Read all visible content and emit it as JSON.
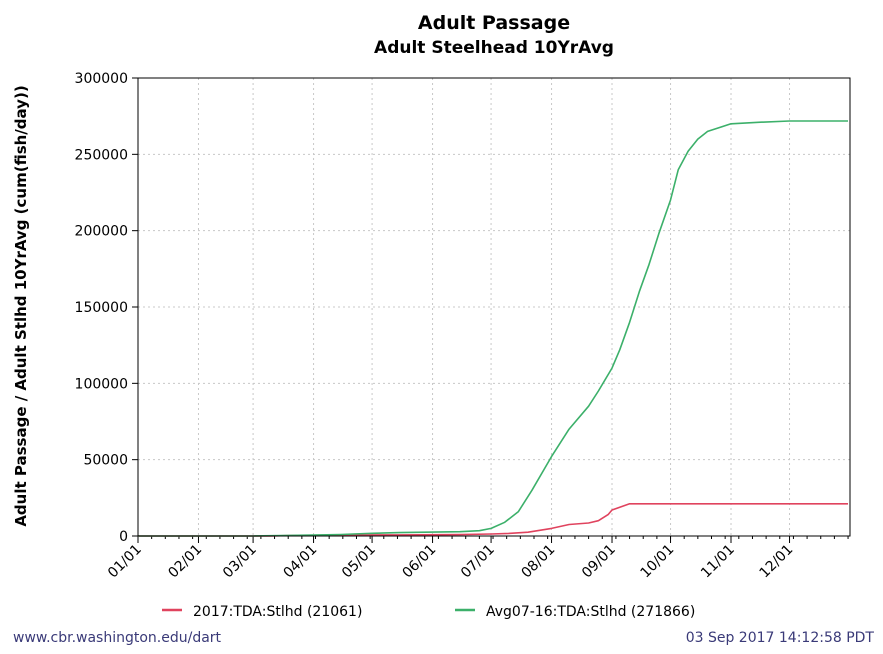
{
  "chart_data": {
    "type": "line",
    "title": "Adult Passage",
    "subtitle": "Adult Steelhead 10YrAvg",
    "ylabel": "Adult Passage / Adult Stlhd 10YrAvg (cum(fish/day))",
    "xlabel": "",
    "ylim": [
      0,
      300000
    ],
    "yticks": [
      0,
      50000,
      100000,
      150000,
      200000,
      250000,
      300000
    ],
    "ytick_labels": [
      "0",
      "50000",
      "100000",
      "150000",
      "200000",
      "250000",
      "300000"
    ],
    "xlim": [
      "01/01",
      "12/31"
    ],
    "xtick_labels": [
      "01/01",
      "02/01",
      "03/01",
      "04/01",
      "05/01",
      "06/01",
      "07/01",
      "08/01",
      "09/01",
      "10/01",
      "11/01",
      "12/01"
    ],
    "grid": true,
    "legend_position": "bottom",
    "series": [
      {
        "name": "2017:TDA:Stlhd (21061)",
        "color": "#e0435e",
        "x": [
          "01/01",
          "03/10",
          "03/20",
          "04/15",
          "05/15",
          "06/15",
          "07/01",
          "07/10",
          "07/20",
          "08/01",
          "08/10",
          "08/20",
          "08/25",
          "08/30",
          "09/01",
          "09/10",
          "10/01",
          "11/01",
          "12/01",
          "12/31"
        ],
        "y": [
          0,
          0,
          300,
          600,
          700,
          900,
          1300,
          1700,
          2500,
          5000,
          7500,
          8500,
          10000,
          14000,
          17000,
          21061,
          21061,
          21061,
          21061,
          21061
        ]
      },
      {
        "name": "Avg07-16:TDA:Stlhd (271866)",
        "color": "#3cb06a",
        "x": [
          "01/01",
          "03/01",
          "03/20",
          "04/15",
          "05/01",
          "05/15",
          "06/15",
          "06/25",
          "07/01",
          "07/08",
          "07/15",
          "07/22",
          "08/01",
          "08/10",
          "08/20",
          "08/25",
          "09/01",
          "09/05",
          "09/10",
          "09/15",
          "09/20",
          "09/25",
          "10/01",
          "10/05",
          "10/10",
          "10/15",
          "10/20",
          "11/01",
          "11/15",
          "12/01",
          "12/31"
        ],
        "y": [
          0,
          0,
          400,
          1000,
          1800,
          2200,
          2800,
          3500,
          5000,
          9000,
          16000,
          30000,
          52000,
          70000,
          85000,
          95000,
          110000,
          122000,
          140000,
          160000,
          178000,
          198000,
          220000,
          240000,
          252000,
          260000,
          265000,
          270000,
          271000,
          271866,
          271866
        ]
      }
    ]
  },
  "footer": {
    "left": "www.cbr.washington.edu/dart",
    "right": "03 Sep 2017 14:12:58 PDT"
  }
}
